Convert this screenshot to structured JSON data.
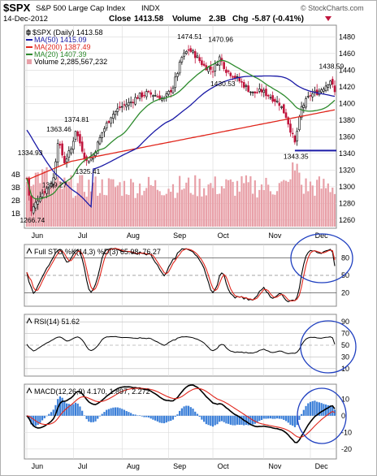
{
  "header": {
    "symbol": "$SPX",
    "name": "S&P 500 Large Cap Index",
    "exchange": "INDX",
    "site": "© StockCharts.com",
    "date": "14-Dec-2012",
    "close_label": "Close",
    "close_value": "1413.58",
    "volume_label": "Volume",
    "volume_value": "2.3B",
    "chg_label": "Chg",
    "chg_value": "-5.87 (-0.41%)"
  },
  "legend": {
    "price": "$SPX (Daily) 1413.58",
    "ma50": "MA(50) 1415.09",
    "ma200": "MA(200) 1387.49",
    "ma20": "MA(20) 1407.39",
    "volume": "Volume 2,285,567,232"
  },
  "colors": {
    "up": "#000000",
    "down": "#c0143c",
    "ma50": "#1a1aa6",
    "ma200": "#e0261c",
    "ma20": "#2e8b2e",
    "volume": "#e8a0a8",
    "macd_hist": "#3b7fd8",
    "circle": "#2040c0",
    "grid": "#d8d8d8"
  },
  "chart_data": [
    {
      "type": "candlestick",
      "panel": "price",
      "x_months": [
        "Jun",
        "Jul",
        "Aug",
        "Sep",
        "Oct",
        "Nov",
        "Dec"
      ],
      "y_ticks": [
        1260,
        1280,
        1300,
        1320,
        1340,
        1360,
        1380,
        1400,
        1420,
        1440,
        1460,
        1480
      ],
      "ylim": [
        1252,
        1492
      ],
      "volume_ticks": [
        "1B",
        "2B",
        "3B",
        "4B"
      ],
      "volume_lim": [
        0,
        5
      ],
      "annotations": [
        {
          "label": "1334.93",
          "x": 1,
          "y": 1334.93
        },
        {
          "label": "1266.74",
          "x": 2,
          "y": 1266.74
        },
        {
          "label": "1309.27",
          "x": 12,
          "y": 1309.27
        },
        {
          "label": "1363.46",
          "x": 14,
          "y": 1363.46
        },
        {
          "label": "1374.81",
          "x": 22,
          "y": 1374.81
        },
        {
          "label": "1325.41",
          "x": 27,
          "y": 1325.41
        },
        {
          "label": "1474.51",
          "x": 73,
          "y": 1474.51
        },
        {
          "label": "1430.53",
          "x": 88,
          "y": 1430.53
        },
        {
          "label": "1470.96",
          "x": 87,
          "y": 1470.96
        },
        {
          "label": "1343.35",
          "x": 121,
          "y": 1343.35
        },
        {
          "label": "1438.59",
          "x": 137,
          "y": 1438.59
        }
      ],
      "horizontal_line": {
        "y": 1343.35,
        "from_x": 121
      },
      "series": [
        {
          "name": "MA(50) 1415.09",
          "key": "ma50"
        },
        {
          "name": "MA(200) 1387.49",
          "key": "ma200"
        },
        {
          "name": "MA(20) 1407.39",
          "key": "ma20"
        }
      ]
    },
    {
      "type": "line",
      "panel": "stochastic",
      "title": "Full STO %K(14,3) %D(3) 65.98, 76.27",
      "y_ticks": [
        20,
        50,
        80
      ],
      "ylim": [
        0,
        100
      ],
      "series": [
        {
          "name": "%K",
          "last": 65.98
        },
        {
          "name": "%D",
          "last": 76.27
        }
      ]
    },
    {
      "type": "line",
      "panel": "rsi",
      "title": "RSI(14) 51.62",
      "y_ticks": [
        10,
        30,
        50,
        70,
        90
      ],
      "ylim": [
        0,
        100
      ],
      "series": [
        {
          "name": "RSI",
          "last": 51.62
        }
      ]
    },
    {
      "type": "line",
      "panel": "macd",
      "title": "MACD(12,26,9) 4.170, 1.897, 2.272",
      "y_ticks": [
        -20,
        -10,
        0,
        10
      ],
      "ylim": [
        -25,
        18
      ],
      "series": [
        {
          "name": "MACD",
          "last": 4.17
        },
        {
          "name": "Signal",
          "last": 1.897
        },
        {
          "name": "Histogram",
          "last": 2.272
        }
      ]
    }
  ]
}
